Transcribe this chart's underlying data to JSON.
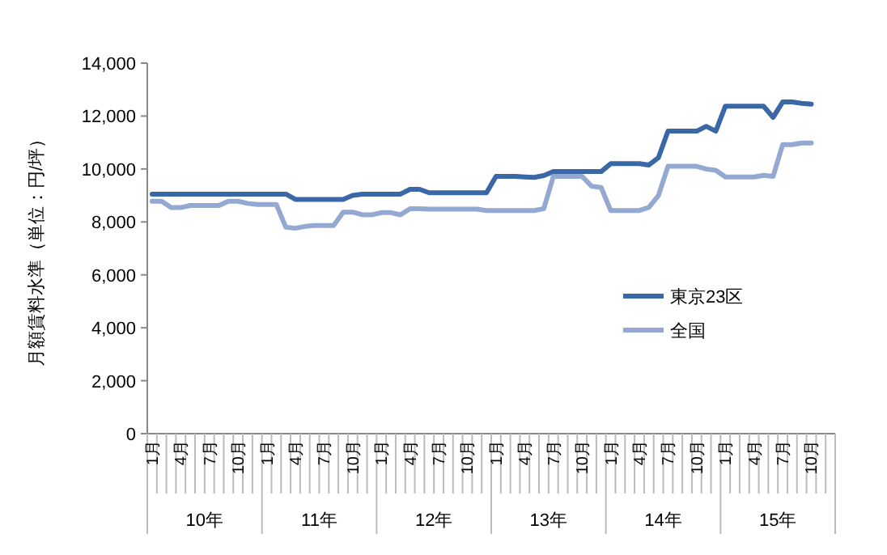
{
  "chart_data": {
    "type": "line",
    "ylabel": "月額賃料水準（単位：円/坪）",
    "categories": [
      "1月",
      null,
      null,
      "4月",
      null,
      null,
      "7月",
      null,
      null,
      "10月",
      null,
      null,
      "1月",
      null,
      null,
      "4月",
      null,
      null,
      "7月",
      null,
      null,
      "10月",
      null,
      null,
      "1月",
      null,
      null,
      "4月",
      null,
      null,
      "7月",
      null,
      null,
      "10月",
      null,
      null,
      "1月",
      null,
      null,
      "4月",
      null,
      null,
      "7月",
      null,
      null,
      "10月",
      null,
      null,
      "1月",
      null,
      null,
      "4月",
      null,
      null,
      "7月",
      null,
      null,
      "10月",
      null,
      null,
      "1月",
      null,
      null,
      "4月",
      null,
      null,
      "7月",
      null,
      null,
      "10月",
      null,
      null
    ],
    "annotations": [
      "10年",
      "11年",
      "12年",
      "13年",
      "14年",
      "15年"
    ],
    "ylim": [
      0,
      14000
    ],
    "yticks": [
      {
        "value": 0,
        "label": "0"
      },
      {
        "value": 2000,
        "label": "2,000"
      },
      {
        "value": 4000,
        "label": "4,000"
      },
      {
        "value": 6000,
        "label": "6,000"
      },
      {
        "value": 8000,
        "label": "8,000"
      },
      {
        "value": 10000,
        "label": "10,000"
      },
      {
        "value": 12000,
        "label": "12,000"
      },
      {
        "value": 14000,
        "label": "14,000"
      }
    ],
    "grid": false,
    "legend": "right",
    "marker": "none",
    "line_style": "solid",
    "series": [
      {
        "name": "東京23区",
        "color": "#3a67a5",
        "values": [
          9050,
          9050,
          9050,
          9050,
          9050,
          9050,
          9050,
          9050,
          9050,
          9050,
          9050,
          9050,
          9050,
          9050,
          9050,
          8850,
          8850,
          8850,
          8850,
          8850,
          8850,
          9000,
          9050,
          9050,
          9050,
          9050,
          9050,
          9230,
          9230,
          9100,
          9100,
          9100,
          9100,
          9100,
          9100,
          9100,
          9720,
          9720,
          9720,
          9700,
          9680,
          9750,
          9900,
          9900,
          9900,
          9900,
          9900,
          9900,
          10200,
          10200,
          10200,
          10200,
          10150,
          10430,
          11430,
          11430,
          11430,
          11430,
          11610,
          11430,
          12370,
          12370,
          12370,
          12370,
          12370,
          11950,
          12530,
          12530,
          12480,
          12450,
          null,
          null
        ]
      },
      {
        "name": "全国",
        "color": "#93a9d2",
        "values": [
          8780,
          8780,
          8540,
          8540,
          8620,
          8620,
          8620,
          8620,
          8780,
          8780,
          8700,
          8660,
          8660,
          8660,
          7800,
          7760,
          7830,
          7860,
          7860,
          7860,
          8370,
          8370,
          8270,
          8270,
          8350,
          8350,
          8270,
          8500,
          8500,
          8480,
          8480,
          8480,
          8480,
          8480,
          8480,
          8430,
          8430,
          8430,
          8430,
          8430,
          8430,
          8500,
          9720,
          9720,
          9720,
          9720,
          9350,
          9300,
          8430,
          8430,
          8430,
          8430,
          8550,
          9000,
          10100,
          10100,
          10100,
          10100,
          10000,
          9950,
          9700,
          9700,
          9700,
          9700,
          9760,
          9720,
          10920,
          10920,
          10980,
          10980,
          null,
          null
        ]
      }
    ]
  }
}
